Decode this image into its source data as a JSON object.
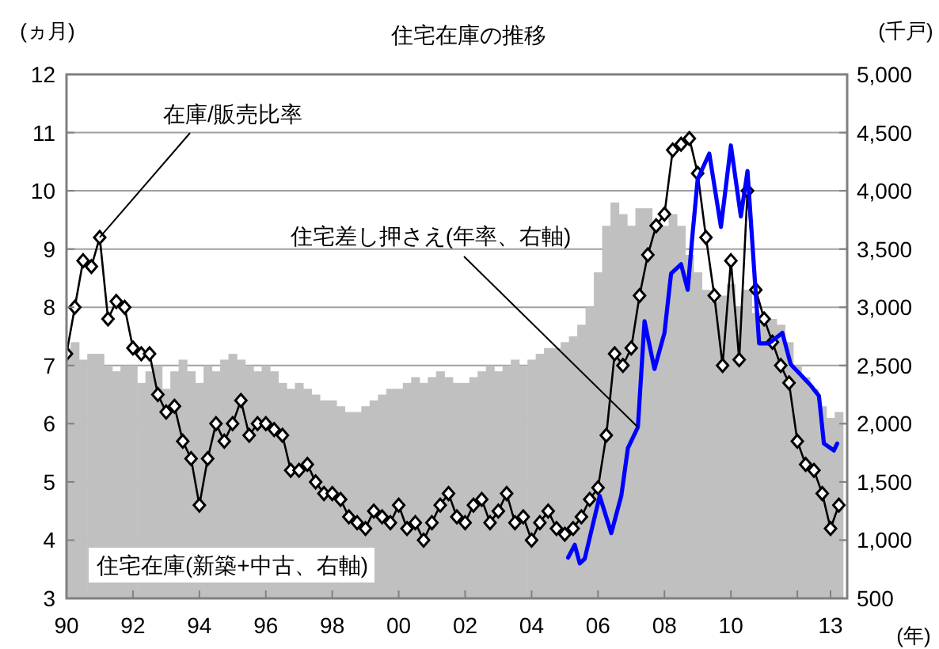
{
  "chart_data": {
    "type": "line",
    "title": "住宅在庫の推移",
    "xlabel": "(年)",
    "ylabel": "(ヵ月)",
    "y2label": "(千戸)",
    "xlim": [
      1990,
      2013.5
    ],
    "xticks": [
      {
        "value": 1990,
        "label": "90"
      },
      {
        "value": 1992,
        "label": "92"
      },
      {
        "value": 1994,
        "label": "94"
      },
      {
        "value": 1996,
        "label": "96"
      },
      {
        "value": 1998,
        "label": "98"
      },
      {
        "value": 2000,
        "label": "00"
      },
      {
        "value": 2002,
        "label": "02"
      },
      {
        "value": 2004,
        "label": "04"
      },
      {
        "value": 2006,
        "label": "06"
      },
      {
        "value": 2008,
        "label": "08"
      },
      {
        "value": 2010,
        "label": "10"
      },
      {
        "value": 2012,
        "label": null
      },
      {
        "value": 2013,
        "label": "13"
      }
    ],
    "ylim": [
      3,
      12
    ],
    "yticks": [
      3,
      4,
      5,
      6,
      7,
      8,
      9,
      10,
      11,
      12
    ],
    "y2lim": [
      500,
      5000
    ],
    "y2ticks": [
      500,
      {
        "value": 1000,
        "label": "1,000"
      },
      {
        "value": 1500,
        "label": "1,500"
      },
      {
        "value": 2000,
        "label": "2,000"
      },
      {
        "value": 2500,
        "label": "2,500"
      },
      {
        "value": 3000,
        "label": "3,000"
      },
      {
        "value": 3500,
        "label": "3,500"
      },
      {
        "value": 4000,
        "label": "4,000"
      },
      {
        "value": 4500,
        "label": "4,500"
      },
      {
        "value": 5000,
        "label": "5,000"
      }
    ],
    "grid": "y",
    "x": [
      1990,
      1990.25,
      1990.5,
      1990.75,
      1991,
      1991.25,
      1991.5,
      1991.75,
      1992,
      1992.25,
      1992.5,
      1992.75,
      1993,
      1993.25,
      1993.5,
      1993.75,
      1994,
      1994.25,
      1994.5,
      1994.75,
      1995,
      1995.25,
      1995.5,
      1995.75,
      1996,
      1996.25,
      1996.5,
      1996.75,
      1997,
      1997.25,
      1997.5,
      1997.75,
      1998,
      1998.25,
      1998.5,
      1998.75,
      1999,
      1999.25,
      1999.5,
      1999.75,
      2000,
      2000.25,
      2000.5,
      2000.75,
      2001,
      2001.25,
      2001.5,
      2001.75,
      2002,
      2002.25,
      2002.5,
      2002.75,
      2003,
      2003.25,
      2003.5,
      2003.75,
      2004,
      2004.25,
      2004.5,
      2004.75,
      2005,
      2005.25,
      2005.5,
      2005.75,
      2006,
      2006.25,
      2006.5,
      2006.75,
      2007,
      2007.25,
      2007.5,
      2007.75,
      2008,
      2008.25,
      2008.5,
      2008.75,
      2009,
      2009.25,
      2009.5,
      2009.75,
      2010,
      2010.25,
      2010.5,
      2010.75,
      2011,
      2011.25,
      2011.5,
      2011.75,
      2012,
      2012.25,
      2012.5,
      2012.75,
      2013,
      2013.25
    ],
    "series": [
      {
        "name": "住宅在庫(新築+中古、右軸)",
        "type": "bar",
        "axis": "y2",
        "color": "#c0c0c0",
        "values": [
          2650,
          2700,
          2550,
          2600,
          2600,
          2500,
          2450,
          2500,
          2500,
          2350,
          2450,
          2500,
          2300,
          2450,
          2550,
          2450,
          2350,
          2500,
          2450,
          2550,
          2600,
          2550,
          2500,
          2450,
          2500,
          2450,
          2350,
          2300,
          2350,
          2300,
          2250,
          2200,
          2200,
          2150,
          2100,
          2100,
          2150,
          2200,
          2250,
          2300,
          2300,
          2350,
          2400,
          2350,
          2400,
          2450,
          2400,
          2350,
          2350,
          2400,
          2450,
          2500,
          2450,
          2500,
          2550,
          2500,
          2550,
          2600,
          2650,
          2650,
          2700,
          2750,
          2850,
          3000,
          3300,
          3700,
          3900,
          3800,
          3700,
          3850,
          3850,
          3700,
          3700,
          3800,
          3700,
          3450,
          3300,
          3150,
          3050,
          3100,
          3200,
          3000,
          3150,
          2950,
          2900,
          2900,
          2850,
          2700,
          2500,
          2400,
          2300,
          2150,
          2050,
          2100
        ]
      },
      {
        "name": "在庫/販売比率",
        "color": "#000000",
        "marker": "diamond",
        "values": [
          7.2,
          8.0,
          8.8,
          8.7,
          9.2,
          7.8,
          8.1,
          8.0,
          7.3,
          7.2,
          7.2,
          6.5,
          6.2,
          6.3,
          5.7,
          5.4,
          4.6,
          5.4,
          6.0,
          5.7,
          6.0,
          6.4,
          5.8,
          6.0,
          6.0,
          5.9,
          5.8,
          5.2,
          5.2,
          5.3,
          5.0,
          4.8,
          4.8,
          4.7,
          4.4,
          4.3,
          4.2,
          4.5,
          4.4,
          4.3,
          4.6,
          4.2,
          4.3,
          4.0,
          4.3,
          4.6,
          4.8,
          4.4,
          4.3,
          4.6,
          4.7,
          4.3,
          4.5,
          4.8,
          4.3,
          4.4,
          4.0,
          4.3,
          4.5,
          4.2,
          4.1,
          4.2,
          4.4,
          4.7,
          4.9,
          5.8,
          7.2,
          7.0,
          7.3,
          8.2,
          8.9,
          9.4,
          9.6,
          10.7,
          10.8,
          10.9,
          10.3,
          9.2,
          8.2,
          7.0,
          8.8,
          7.1,
          10.0,
          8.3,
          7.8,
          7.4,
          7.0,
          6.7,
          5.7,
          5.3,
          5.2,
          4.8,
          4.2,
          4.6
        ]
      },
      {
        "name": "住宅差し押さえ(年率、右軸)",
        "type": "line",
        "axis": "y2",
        "color": "#0000ff",
        "x": [
          2005.1,
          2005.3,
          2005.45,
          2005.6,
          2006.05,
          2006.4,
          2006.7,
          2006.9,
          2007.2,
          2007.4,
          2007.7,
          2008.0,
          2008.2,
          2008.5,
          2008.7,
          2008.85,
          2009.0,
          2009.35,
          2009.7,
          2010.0,
          2010.3,
          2010.5,
          2010.85,
          2011.15,
          2011.55,
          2011.8,
          2012.1,
          2012.4,
          2012.65,
          2012.8,
          2013.1,
          2013.2
        ],
        "values": [
          850,
          960,
          800,
          840,
          1380,
          1060,
          1380,
          1790,
          1970,
          2880,
          2470,
          2780,
          3290,
          3370,
          3150,
          3640,
          4100,
          4320,
          3690,
          4390,
          3780,
          4170,
          2690,
          2690,
          2780,
          2510,
          2420,
          2330,
          2240,
          1830,
          1770,
          1830
        ]
      }
    ]
  }
}
